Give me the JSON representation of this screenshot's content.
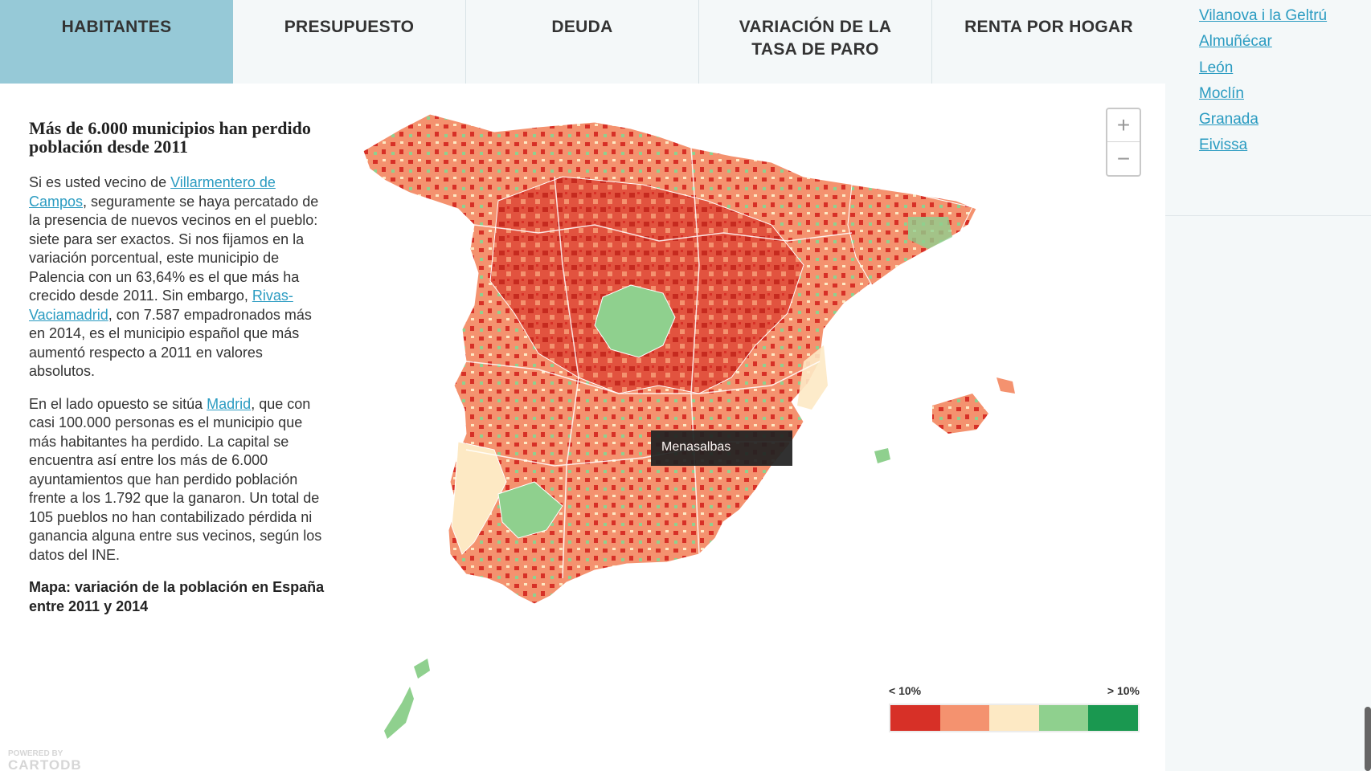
{
  "tabs": [
    {
      "label": "HABITANTES",
      "active": true
    },
    {
      "label": "PRESUPUESTO",
      "active": false
    },
    {
      "label": "DEUDA",
      "active": false
    },
    {
      "label": "VARIACIÓN DE LA TASA DE PARO",
      "active": false
    },
    {
      "label": "RENTA POR HOGAR",
      "active": false
    }
  ],
  "sidebar": {
    "links": [
      "Vilanova i la Geltrú",
      "Almuñécar",
      "León",
      "Moclín",
      "Granada",
      "Eivissa"
    ]
  },
  "article": {
    "title": "Más de 6.000 municipios han perdido población desde 2011",
    "p1_intro": "Si es usted vecino de ",
    "p1_link1": "Villarmentero de Campos",
    "p1_mid": ", seguramente se haya percatado de la presencia de nuevos vecinos en el pueblo: siete para ser exactos. Si nos fijamos en la variación porcentual, este municipio de Palencia con un 63,64% es el que más ha crecido desde 2011. Sin embargo, ",
    "p1_link2": "Rivas-Vaciamadrid",
    "p1_end": ", con 7.587 empadronados más en 2014, es el municipio español que más aumentó respecto a 2011 en valores absolutos.",
    "p2_intro": "En el lado opuesto se sitúa ",
    "p2_link": "Madrid",
    "p2_end": ", que con casi 100.000 personas es el municipio que más habitantes ha perdido. La capital se encuentra así entre los más de 6.000 ayuntamientos que han perdido población frente a los 1.792 que la ganaron. Un total de 105 pueblos no han contabilizado pérdida ni ganancia alguna entre sus vecinos, según los datos del INE.",
    "caption": "Mapa: variación de la población en España entre 2011 y 2014"
  },
  "map": {
    "tooltip": "Menasalbas",
    "zoom_in": "+",
    "zoom_out": "−",
    "legend_low": "< 10%",
    "legend_high": "> 10%",
    "legend_colors": [
      "#d73027",
      "#f4926f",
      "#fde9c4",
      "#8fd08e",
      "#1a9850"
    ],
    "powered_by": "POWERED BY",
    "powered_logo": "CARTODB"
  }
}
